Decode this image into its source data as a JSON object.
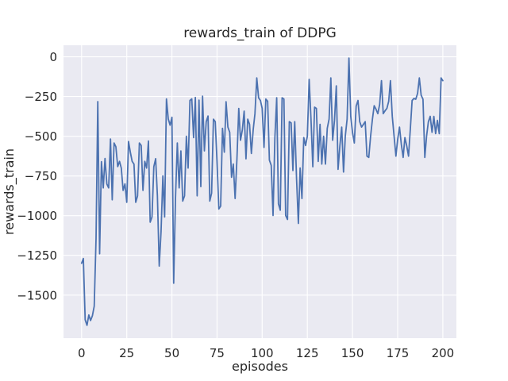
{
  "figure": {
    "background": "#ffffff"
  },
  "chart_data": {
    "type": "line",
    "title": "rewards_train of DDPG",
    "xlabel": "episodes",
    "ylabel": "rewards_train",
    "grid": true,
    "legend": false,
    "style": "seaborn-darkgrid",
    "xlim": [
      -10,
      207.5
    ],
    "ylim": [
      -1771,
      73
    ],
    "xticks": [
      0,
      25,
      50,
      75,
      100,
      125,
      150,
      175,
      200
    ],
    "xtick_labels": [
      "0",
      "25",
      "50",
      "75",
      "100",
      "125",
      "150",
      "175",
      "200"
    ],
    "yticks": [
      0,
      -250,
      -500,
      -750,
      -1000,
      -1250,
      -1500
    ],
    "ytick_labels": [
      "0",
      "−250",
      "−500",
      "−750",
      "−1000",
      "−1250",
      "−1500"
    ],
    "colors": {
      "figure_bg": "#ffffff",
      "axes_bg": "#eaeaf2",
      "grid": "#ffffff",
      "line": "#4c72b0",
      "text": "#262626"
    },
    "series": [
      {
        "name": "rewards_train",
        "color": "#4c72b0",
        "x_start": 0,
        "x_step": 1,
        "values": [
          -1300,
          -1270,
          -1655,
          -1690,
          -1625,
          -1660,
          -1630,
          -1570,
          -1145,
          -282,
          -1240,
          -660,
          -825,
          -640,
          -800,
          -825,
          -517,
          -900,
          -542,
          -566,
          -691,
          -658,
          -700,
          -841,
          -800,
          -916,
          -533,
          -600,
          -658,
          -675,
          -916,
          -875,
          -542,
          -558,
          -841,
          -658,
          -700,
          -530,
          -1041,
          -1008,
          -691,
          -641,
          -875,
          -1317,
          -1100,
          -750,
          -1008,
          -265,
          -391,
          -430,
          -381,
          -1425,
          -890,
          -542,
          -825,
          -592,
          -908,
          -875,
          -500,
          -700,
          -275,
          -265,
          -508,
          -256,
          -875,
          -273,
          -817,
          -248,
          -592,
          -408,
          -373,
          -908,
          -858,
          -392,
          -408,
          -658,
          -958,
          -940,
          -450,
          -600,
          -283,
          -442,
          -475,
          -758,
          -675,
          -892,
          -642,
          -325,
          -525,
          -460,
          -342,
          -642,
          -392,
          -425,
          -608,
          -458,
          -358,
          -133,
          -258,
          -275,
          -325,
          -570,
          -266,
          -280,
          -650,
          -683,
          -999,
          -510,
          -258,
          -925,
          -966,
          -258,
          -266,
          -999,
          -1024,
          -408,
          -416,
          -716,
          -408,
          -766,
          -1049,
          -700,
          -892,
          -508,
          -558,
          -500,
          -142,
          -392,
          -692,
          -317,
          -325,
          -658,
          -425,
          -675,
          -500,
          -675,
          -450,
          -392,
          -133,
          -525,
          -400,
          -183,
          -708,
          -560,
          -442,
          -725,
          -500,
          -392,
          -8,
          -375,
          -475,
          -542,
          -310,
          -275,
          -408,
          -442,
          -425,
          -408,
          -625,
          -633,
          -500,
          -392,
          -308,
          -330,
          -358,
          -300,
          -150,
          -358,
          -340,
          -325,
          -280,
          -150,
          -375,
          -500,
          -625,
          -520,
          -442,
          -550,
          -633,
          -508,
          -560,
          -625,
          -450,
          -275,
          -262,
          -267,
          -230,
          -133,
          -242,
          -267,
          -633,
          -500,
          -408,
          -375,
          -475,
          -375,
          -483,
          -400,
          -483,
          -133,
          -150
        ]
      }
    ]
  }
}
